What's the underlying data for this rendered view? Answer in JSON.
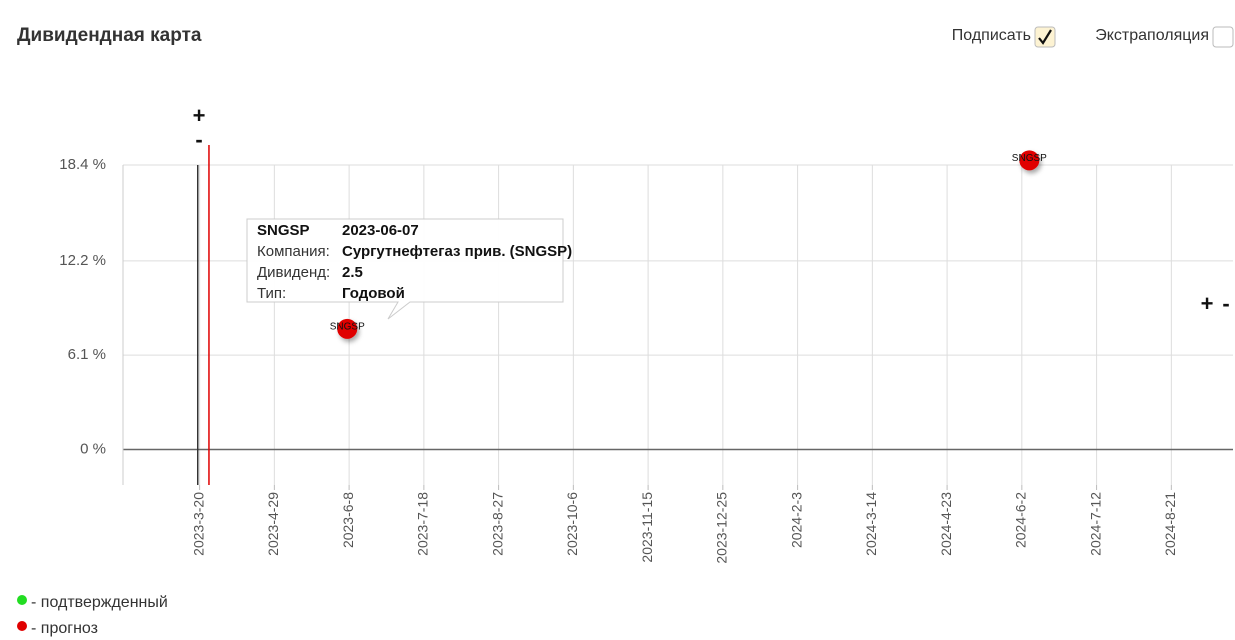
{
  "header": {
    "title": "Дивидендная карта"
  },
  "options": [
    {
      "label": "Подписать",
      "checked": true
    },
    {
      "label": "Экстраполяция",
      "checked": false
    }
  ],
  "zoom": {
    "in": "+",
    "out": "-"
  },
  "chart_data": {
    "type": "scatter",
    "xlim": [
      "2023-02-07",
      "2024-09-23"
    ],
    "xticks": [
      {
        "value": "2023-03-20",
        "label": "2023-3-20"
      },
      {
        "value": "2023-04-29",
        "label": "2023-4-29"
      },
      {
        "value": "2023-06-08",
        "label": "2023-6-8"
      },
      {
        "value": "2023-07-18",
        "label": "2023-7-18"
      },
      {
        "value": "2023-08-27",
        "label": "2023-8-27"
      },
      {
        "value": "2023-10-06",
        "label": "2023-10-6"
      },
      {
        "value": "2023-11-15",
        "label": "2023-11-15"
      },
      {
        "value": "2023-12-25",
        "label": "2023-12-25"
      },
      {
        "value": "2024-02-03",
        "label": "2024-2-3"
      },
      {
        "value": "2024-03-14",
        "label": "2024-3-14"
      },
      {
        "value": "2024-04-23",
        "label": "2024-4-23"
      },
      {
        "value": "2024-06-02",
        "label": "2024-6-2"
      },
      {
        "value": "2024-07-12",
        "label": "2024-7-12"
      },
      {
        "value": "2024-08-21",
        "label": "2024-8-21"
      }
    ],
    "ylim": [
      -2.3,
      18.4
    ],
    "yticks": [
      {
        "value": 0,
        "label": "0 %"
      },
      {
        "value": 6.1,
        "label": "6.1 %"
      },
      {
        "value": 12.2,
        "label": "12.2 %"
      },
      {
        "value": 18.4,
        "label": "18.4 %"
      }
    ],
    "grid": true,
    "markers": [
      {
        "x": "2023-03-19",
        "color": "#333333"
      },
      {
        "x": "2023-03-25",
        "color": "#e00000"
      }
    ],
    "series": [
      {
        "name": "- подтвержденный",
        "color": "#22dd22",
        "x": [],
        "values": [],
        "labels": []
      },
      {
        "name": "- прогноз",
        "color": "#e00000",
        "x": [
          "2023-06-07",
          "2024-06-06"
        ],
        "values": [
          7.8,
          18.7
        ],
        "labels": [
          "SNGSP",
          "SNGSP"
        ]
      }
    ],
    "tooltip": {
      "ticker": "SNGSP",
      "date": "2023-06-07",
      "rows": [
        [
          "Компания:",
          "Сургутнефтегаз прив. (SNGSP)"
        ],
        [
          "Дивиденд:",
          2.5
        ],
        [
          "Тип:",
          "Годовой"
        ]
      ]
    }
  }
}
